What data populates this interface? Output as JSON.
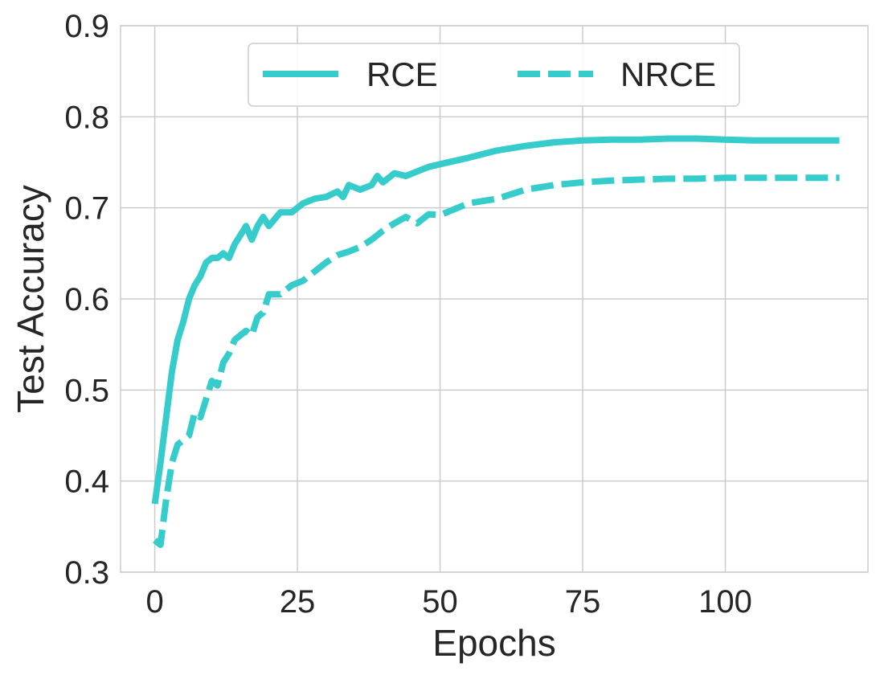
{
  "chart_data": {
    "type": "line",
    "xlabel": "Epochs",
    "ylabel": "Test Accuracy",
    "xlim": [
      -6,
      125
    ],
    "ylim": [
      0.3,
      0.9
    ],
    "xticks": [
      0,
      25,
      50,
      75,
      100
    ],
    "xtick_labels": [
      "0",
      "25",
      "50",
      "75",
      "100"
    ],
    "yticks": [
      0.3,
      0.4,
      0.5,
      0.6,
      0.7,
      0.8,
      0.9
    ],
    "ytick_labels": [
      "0.3",
      "0.4",
      "0.5",
      "0.6",
      "0.7",
      "0.8",
      "0.9"
    ],
    "grid": true,
    "legend_position": "top-center",
    "color": "#36cccc",
    "series": [
      {
        "name": "RCE",
        "style": "solid",
        "x": [
          0,
          1,
          2,
          3,
          4,
          5,
          6,
          7,
          8,
          9,
          10,
          11,
          12,
          13,
          14,
          15,
          16,
          17,
          18,
          19,
          20,
          22,
          24,
          26,
          28,
          30,
          32,
          33,
          34,
          36,
          38,
          39,
          40,
          42,
          44,
          46,
          48,
          50,
          55,
          60,
          65,
          70,
          75,
          80,
          85,
          90,
          95,
          100,
          105,
          110,
          115,
          120
        ],
        "y": [
          0.375,
          0.42,
          0.47,
          0.52,
          0.555,
          0.575,
          0.6,
          0.615,
          0.625,
          0.64,
          0.645,
          0.645,
          0.65,
          0.645,
          0.66,
          0.67,
          0.68,
          0.665,
          0.68,
          0.69,
          0.68,
          0.695,
          0.695,
          0.705,
          0.71,
          0.712,
          0.718,
          0.712,
          0.725,
          0.72,
          0.725,
          0.735,
          0.728,
          0.738,
          0.735,
          0.74,
          0.745,
          0.748,
          0.755,
          0.763,
          0.768,
          0.772,
          0.774,
          0.775,
          0.775,
          0.776,
          0.776,
          0.775,
          0.774,
          0.774,
          0.774,
          0.774
        ]
      },
      {
        "name": "NRCE",
        "style": "dashed",
        "x": [
          0,
          1,
          2,
          3,
          4,
          5,
          6,
          7,
          8,
          9,
          10,
          11,
          12,
          13,
          14,
          15,
          16,
          17,
          18,
          19,
          20,
          22,
          24,
          26,
          28,
          30,
          32,
          34,
          36,
          38,
          40,
          42,
          44,
          46,
          48,
          50,
          55,
          60,
          65,
          70,
          75,
          80,
          85,
          90,
          95,
          100,
          105,
          110,
          115,
          120
        ],
        "y": [
          0.335,
          0.33,
          0.38,
          0.42,
          0.44,
          0.445,
          0.45,
          0.475,
          0.47,
          0.49,
          0.51,
          0.505,
          0.53,
          0.54,
          0.555,
          0.56,
          0.565,
          0.56,
          0.58,
          0.585,
          0.605,
          0.605,
          0.615,
          0.62,
          0.63,
          0.64,
          0.648,
          0.652,
          0.657,
          0.665,
          0.675,
          0.683,
          0.69,
          0.683,
          0.693,
          0.692,
          0.705,
          0.71,
          0.72,
          0.725,
          0.728,
          0.73,
          0.731,
          0.732,
          0.732,
          0.733,
          0.733,
          0.733,
          0.733,
          0.733
        ]
      }
    ]
  }
}
